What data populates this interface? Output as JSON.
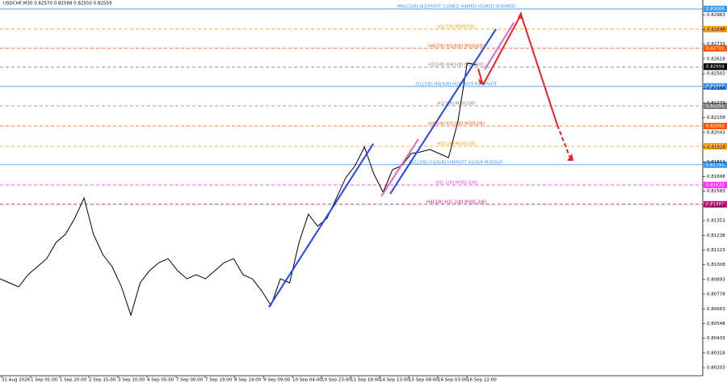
{
  "chart_data": {
    "type": "line",
    "title": "USDCHF,M30  0.82570 0.82588 0.82550 0.82559",
    "ylim": [
      0.8014,
      0.83079
    ],
    "yticks": [
      0.80203,
      0.80318,
      0.80433,
      0.80548,
      0.80663,
      0.80778,
      0.80893,
      0.81008,
      0.81123,
      0.81238,
      0.81353,
      0.81468,
      0.81583,
      0.81698,
      0.81813,
      0.81928,
      0.82043,
      0.82158,
      0.82273,
      0.82388,
      0.82503,
      0.82618,
      0.82733,
      0.82848,
      0.82963
    ],
    "xlabels": [
      "31 Aug 2026",
      "1 Sep 01:00",
      "1 Sep 20:00",
      "2 Sep 15:00",
      "3 Sep 10:00",
      "4 Sep 05:00",
      "7 Sep 00:00",
      "7 Sep 19:00",
      "8 Sep 14:00",
      "9 Sep 09:00",
      "10 Sep 04:00",
      "10 Sep 23:00",
      "11 Sep 18:00",
      "14 Sep 13:00",
      "15 Sep 08:00",
      "16 Sep 03:00",
      "16 Sep 22:00"
    ],
    "series": [
      {
        "name": "USDCHF",
        "color": "#000000",
        "values": [
          0.80898,
          0.80867,
          0.80835,
          0.8093,
          0.80993,
          0.81056,
          0.81183,
          0.81246,
          0.81372,
          0.8153,
          0.81246,
          0.81088,
          0.80993,
          0.80835,
          0.80614,
          0.80867,
          0.80962,
          0.81025,
          0.81056,
          0.80962,
          0.80898,
          0.8093,
          0.80898,
          0.80962,
          0.81025,
          0.81056,
          0.8093,
          0.80898,
          0.80804,
          0.8069,
          0.80898,
          0.80867,
          0.81183,
          0.81404,
          0.81309,
          0.81372,
          0.8153,
          0.81688,
          0.81783,
          0.81929,
          0.8172,
          0.81575,
          0.81752,
          0.81783,
          0.81878,
          0.81891,
          0.8191,
          0.81878,
          0.81846,
          0.82131,
          0.82586,
          0.82573
        ]
      }
    ],
    "last_price": 0.82559,
    "levels": [
      {
        "label": "MN1[2/8] W1[PIVOT D1MED H4MED H1MED M30MED",
        "price": 0.83009,
        "color": "#3399ff",
        "dashed": false
      },
      {
        "label": "H1[7/8] M30[7/8]",
        "price": 0.82851,
        "color": "#ff9900",
        "dashed": true
      },
      {
        "label": "H4[7/8] H1[8/8] M30[8/8]",
        "price": 0.82701,
        "color": "#ff5500",
        "dashed": true
      },
      {
        "label": "H1[5/8] H4[5/8] M30[5/8]",
        "price": 0.82554,
        "color": "#808080",
        "dashed": true
      },
      {
        "label": "D1[7/8] H4[6/8] H1[PIVOT H30PIVOT",
        "price": 0.82403,
        "color": "#3399ff",
        "dashed": false
      },
      {
        "label": "H1[3/8] M30[3/8]",
        "price": 0.82251,
        "color": "#808080",
        "dashed": true
      },
      {
        "label": "H4[5/8] H1[2/8] M30[2/8]",
        "price": 0.82093,
        "color": "#ff5500",
        "dashed": true
      },
      {
        "label": "H1[1/8] M30[1/8]",
        "price": 0.81935,
        "color": "#ff9900",
        "dashed": true
      },
      {
        "label": "W1[3/8] D1[6/8] H4PIVOT H1SUP M30SUP",
        "price": 0.81791,
        "color": "#3399ff",
        "dashed": false
      },
      {
        "label": "H1[-1/8] M30[-1/8]",
        "price": 0.81632,
        "color": "#ff33ff",
        "dashed": true
      },
      {
        "label": "H4[3/8] H1[-2/8] M30[-2/8]",
        "price": 0.81481,
        "color": "#c71585",
        "dashed": true
      }
    ]
  }
}
